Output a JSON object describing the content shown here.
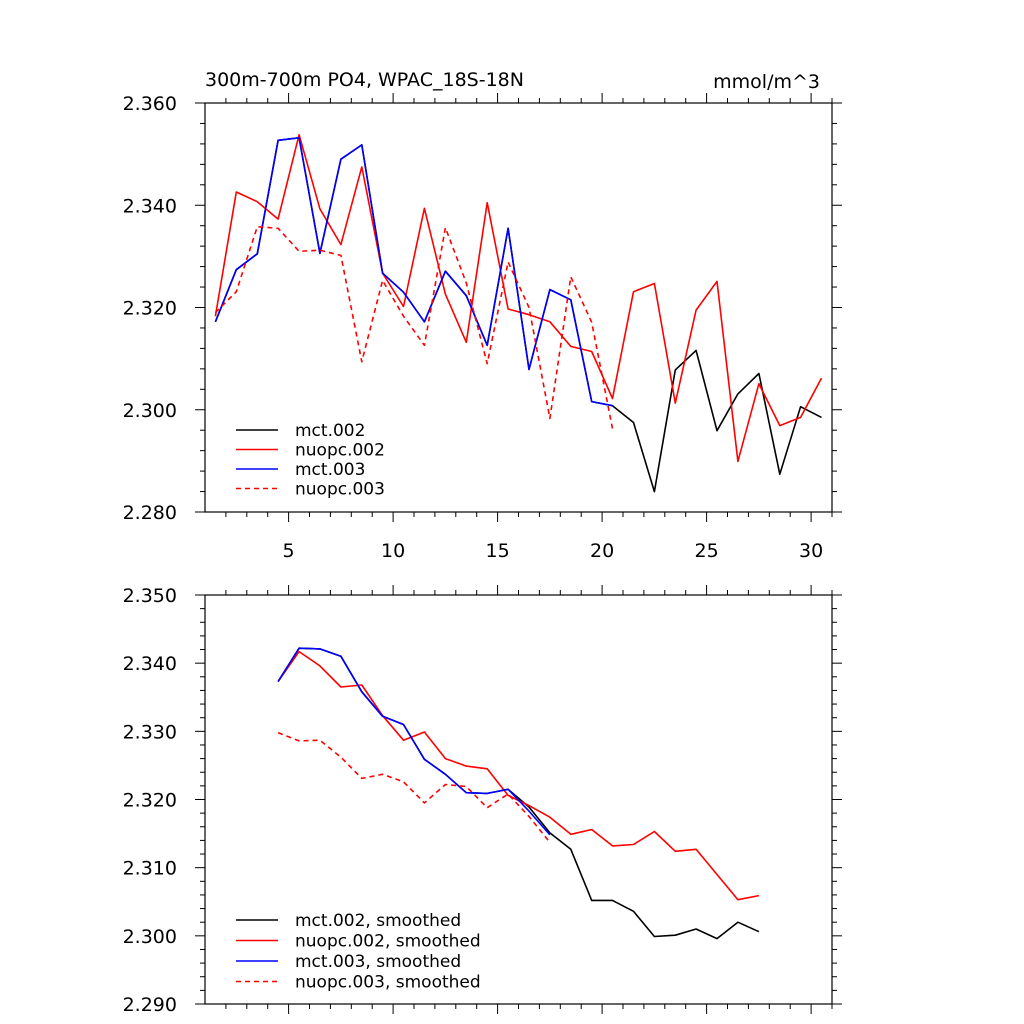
{
  "chart_data": [
    {
      "type": "line",
      "title": "300m-700m PO4, WPAC_18S-18N",
      "units": "mmol/m^3",
      "xlim": [
        1,
        31
      ],
      "ylim": [
        2.28,
        2.36
      ],
      "xticks": [
        5,
        10,
        15,
        20,
        25,
        30
      ],
      "xtick_labels": [
        "5",
        "10",
        "15",
        "20",
        "25",
        "30"
      ],
      "yticks": [
        2.28,
        2.3,
        2.32,
        2.34,
        2.36
      ],
      "ytick_labels": [
        "2.280",
        "2.300",
        "2.320",
        "2.340",
        "2.360"
      ],
      "legend_position": "bottom-left",
      "series": [
        {
          "name": "mct.002",
          "color": "#000000",
          "dash": "solid",
          "x": [
            1.5,
            2.5,
            3.5,
            4.5,
            5.5,
            6.5,
            7.5,
            8.5,
            9.5,
            10.5,
            11.5,
            12.5,
            13.5,
            14.5,
            15.5,
            16.5,
            17.5,
            18.5,
            19.5,
            20.5,
            21.5,
            22.5,
            23.5,
            24.5,
            25.5,
            26.5,
            27.5,
            28.5,
            29.5,
            30.5
          ],
          "y": [
            2.3172,
            2.3274,
            2.3305,
            2.3527,
            2.3532,
            2.3306,
            2.349,
            2.3518,
            2.3267,
            2.323,
            2.3172,
            2.3271,
            2.3223,
            2.3126,
            2.3355,
            2.3079,
            2.3235,
            2.3215,
            2.3016,
            2.3008,
            2.2975,
            2.284,
            2.3078,
            2.3116,
            2.2959,
            2.3031,
            2.3071,
            2.2874,
            2.3006,
            2.2985
          ]
        },
        {
          "name": "nuopc.002",
          "color": "#ff0000",
          "dash": "solid",
          "x": [
            1.5,
            2.5,
            3.5,
            4.5,
            5.5,
            6.5,
            7.5,
            8.5,
            9.5,
            10.5,
            11.5,
            12.5,
            13.5,
            14.5,
            15.5,
            16.5,
            17.5,
            18.5,
            19.5,
            20.5,
            21.5,
            22.5,
            23.5,
            24.5,
            25.5,
            26.5,
            27.5,
            28.5,
            29.5,
            30.5
          ],
          "y": [
            2.3183,
            2.3426,
            2.3407,
            2.3373,
            2.3538,
            2.3393,
            2.3323,
            2.3475,
            2.3267,
            2.3202,
            2.3394,
            2.3226,
            2.3132,
            2.3405,
            2.3197,
            2.3186,
            2.3172,
            2.3124,
            2.3114,
            2.3022,
            2.3231,
            2.3247,
            2.3013,
            2.3195,
            2.3251,
            2.2899,
            2.3051,
            2.2969,
            2.2985,
            2.3062
          ]
        },
        {
          "name": "mct.003",
          "color": "#0000ff",
          "dash": "solid",
          "x": [
            1.5,
            2.5,
            3.5,
            4.5,
            5.5,
            6.5,
            7.5,
            8.5,
            9.5,
            10.5,
            11.5,
            12.5,
            13.5,
            14.5,
            15.5,
            16.5,
            17.5,
            18.5,
            19.5,
            20.5
          ],
          "y": [
            2.3172,
            2.3274,
            2.3305,
            2.3527,
            2.3532,
            2.3306,
            2.349,
            2.3518,
            2.3267,
            2.323,
            2.3172,
            2.3271,
            2.3223,
            2.3126,
            2.3355,
            2.3079,
            2.3235,
            2.3215,
            2.3016,
            2.3008
          ]
        },
        {
          "name": "nuopc.003",
          "color": "#ff0000",
          "dash": "dashed",
          "x": [
            1.5,
            2.5,
            3.5,
            4.5,
            5.5,
            6.5,
            7.5,
            8.5,
            9.5,
            10.5,
            11.5,
            12.5,
            13.5,
            14.5,
            15.5,
            16.5,
            17.5,
            18.5,
            19.5,
            20.5
          ],
          "y": [
            2.319,
            2.3231,
            2.3358,
            2.3355,
            2.331,
            2.3312,
            2.3302,
            2.3094,
            2.3253,
            2.3183,
            2.3126,
            2.3356,
            2.3248,
            2.309,
            2.3289,
            2.32,
            2.2983,
            2.326,
            2.3171,
            2.2963
          ]
        }
      ]
    },
    {
      "type": "line",
      "xlim": [
        1,
        31
      ],
      "ylim": [
        2.29,
        2.35
      ],
      "xticks": [
        5,
        10,
        15,
        20,
        25,
        30
      ],
      "yticks": [
        2.29,
        2.3,
        2.31,
        2.32,
        2.33,
        2.34,
        2.35
      ],
      "ytick_labels": [
        "2.290",
        "2.300",
        "2.310",
        "2.320",
        "2.330",
        "2.340",
        "2.350"
      ],
      "legend_position": "bottom-left",
      "series": [
        {
          "name": "mct.002, smoothed",
          "color": "#000000",
          "dash": "solid",
          "x": [
            4.5,
            5.5,
            6.5,
            7.5,
            8.5,
            9.5,
            10.5,
            11.5,
            12.5,
            13.5,
            14.5,
            15.5,
            16.5,
            17.5,
            18.5,
            19.5,
            20.5,
            21.5,
            22.5,
            23.5,
            24.5,
            25.5,
            26.5,
            27.5
          ],
          "y": [
            2.3373,
            2.3422,
            2.3421,
            2.341,
            2.3358,
            2.3322,
            2.331,
            2.3259,
            2.3237,
            2.321,
            2.3209,
            2.3215,
            2.3189,
            2.3151,
            2.3127,
            2.3052,
            2.3052,
            2.3036,
            2.2999,
            2.3001,
            2.301,
            2.2996,
            2.302,
            2.3006
          ]
        },
        {
          "name": "nuopc.002, smoothed",
          "color": "#ff0000",
          "dash": "solid",
          "x": [
            4.5,
            5.5,
            6.5,
            7.5,
            8.5,
            9.5,
            10.5,
            11.5,
            12.5,
            13.5,
            14.5,
            15.5,
            16.5,
            17.5,
            18.5,
            19.5,
            20.5,
            21.5,
            22.5,
            23.5,
            24.5,
            25.5,
            26.5,
            27.5
          ],
          "y": [
            2.3373,
            2.3417,
            2.3396,
            2.3365,
            2.3368,
            2.3323,
            2.3287,
            2.3299,
            2.326,
            2.3249,
            2.3245,
            2.3206,
            2.3191,
            2.3174,
            2.3149,
            2.3156,
            2.3132,
            2.3134,
            2.3153,
            2.3124,
            2.3127,
            2.309,
            2.3053,
            2.3059
          ]
        },
        {
          "name": "mct.003, smoothed",
          "color": "#0000ff",
          "dash": "solid",
          "x": [
            4.5,
            5.5,
            6.5,
            7.5,
            8.5,
            9.5,
            10.5,
            11.5,
            12.5,
            13.5,
            14.5,
            15.5,
            16.5,
            17.5
          ],
          "y": [
            2.3373,
            2.3422,
            2.3421,
            2.341,
            2.3358,
            2.3322,
            2.331,
            2.3259,
            2.3237,
            2.321,
            2.3209,
            2.3215,
            2.3183,
            2.3148
          ]
        },
        {
          "name": "nuopc.003, smoothed",
          "color": "#ff0000",
          "dash": "dashed",
          "x": [
            4.5,
            5.5,
            6.5,
            7.5,
            8.5,
            9.5,
            10.5,
            11.5,
            12.5,
            13.5,
            14.5,
            15.5,
            16.5,
            17.5
          ],
          "y": [
            2.3298,
            2.3286,
            2.3287,
            2.3262,
            2.3231,
            2.3237,
            2.3226,
            2.3195,
            2.3222,
            2.3219,
            2.3188,
            2.3208,
            2.3175,
            2.3137
          ]
        }
      ]
    }
  ]
}
